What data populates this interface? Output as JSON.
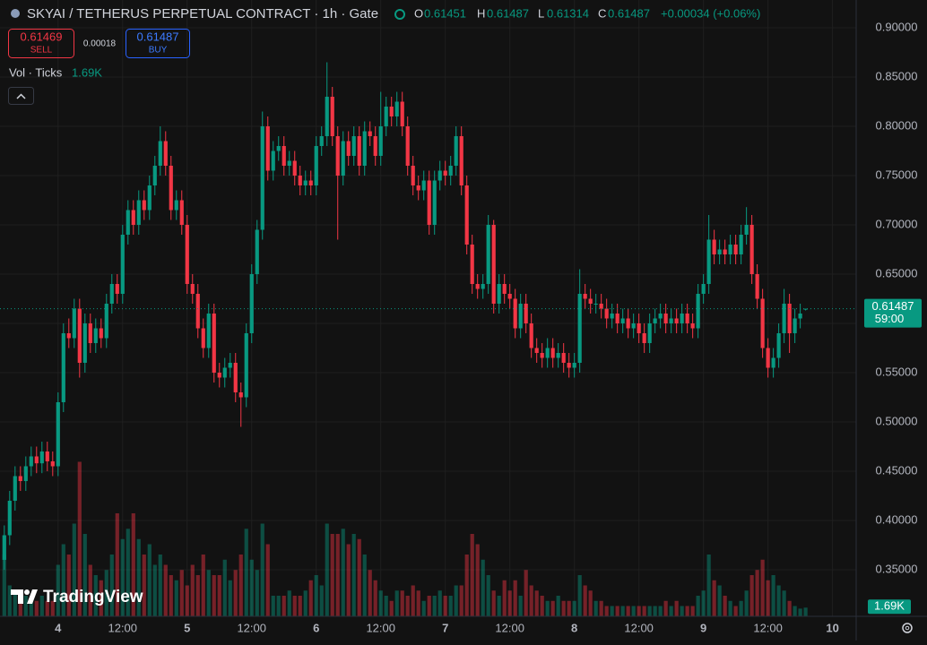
{
  "chart_data": {
    "type": "candlestick",
    "title": "SKYAI / TETHERUS PERPETUAL CONTRACT · 1h · Gate",
    "ohlc_labels": [
      "O",
      "H",
      "L",
      "C"
    ],
    "change": "+0.00034 (+0.06%)",
    "sell": {
      "price": 0.61469,
      "label": "SELL"
    },
    "spread": 0.00018,
    "buy": {
      "price": 0.61487,
      "label": "BUY"
    },
    "volume_title": "Vol · Ticks",
    "volume_label": "1.69K",
    "countdown": "59:00",
    "brand": "TradingView",
    "up_color": "#089981",
    "down_color": "#f23645",
    "grid": true,
    "xlim": [
      -0.8,
      158.4
    ],
    "xticks": [
      {
        "value": 10,
        "label": "4"
      },
      {
        "value": 22,
        "label": "12:00"
      },
      {
        "value": 34,
        "label": "5"
      },
      {
        "value": 46,
        "label": "12:00"
      },
      {
        "value": 58,
        "label": "6"
      },
      {
        "value": 70,
        "label": "12:00"
      },
      {
        "value": 82,
        "label": "7"
      },
      {
        "value": 94,
        "label": "12:00"
      },
      {
        "value": 106,
        "label": "8"
      },
      {
        "value": 118,
        "label": "12:00"
      },
      {
        "value": 130,
        "label": "9"
      },
      {
        "value": 142,
        "label": "12:00"
      },
      {
        "value": 154,
        "label": "10"
      }
    ],
    "ylim": [
      0.3027,
      0.9282
    ],
    "yticks": [
      {
        "value": 0.35,
        "label": "0.35000"
      },
      {
        "value": 0.4,
        "label": "0.40000"
      },
      {
        "value": 0.45,
        "label": "0.45000"
      },
      {
        "value": 0.5,
        "label": "0.50000"
      },
      {
        "value": 0.55,
        "label": "0.55000"
      },
      {
        "value": 0.6,
        "label": "0.60000"
      },
      {
        "value": 0.65,
        "label": "0.65000"
      },
      {
        "value": 0.7,
        "label": "0.70000"
      },
      {
        "value": 0.75,
        "label": "0.75000"
      },
      {
        "value": 0.8,
        "label": "0.80000"
      },
      {
        "value": 0.85,
        "label": "0.85000"
      },
      {
        "value": 0.9,
        "label": "0.90000"
      }
    ],
    "vlim": [
      0,
      40
    ],
    "ohlc": [
      [
        0.36,
        0.395,
        0.35,
        0.385
      ],
      [
        0.385,
        0.43,
        0.375,
        0.42
      ],
      [
        0.42,
        0.455,
        0.41,
        0.445
      ],
      [
        0.445,
        0.455,
        0.43,
        0.44
      ],
      [
        0.44,
        0.465,
        0.43,
        0.455
      ],
      [
        0.455,
        0.475,
        0.445,
        0.465
      ],
      [
        0.465,
        0.475,
        0.448,
        0.458
      ],
      [
        0.458,
        0.48,
        0.448,
        0.47
      ],
      [
        0.47,
        0.48,
        0.45,
        0.46
      ],
      [
        0.46,
        0.47,
        0.445,
        0.455
      ],
      [
        0.455,
        0.53,
        0.445,
        0.52
      ],
      [
        0.52,
        0.6,
        0.51,
        0.59
      ],
      [
        0.59,
        0.605,
        0.575,
        0.585
      ],
      [
        0.585,
        0.625,
        0.575,
        0.615
      ],
      [
        0.615,
        0.625,
        0.545,
        0.56
      ],
      [
        0.56,
        0.61,
        0.55,
        0.6
      ],
      [
        0.6,
        0.61,
        0.57,
        0.58
      ],
      [
        0.58,
        0.605,
        0.57,
        0.595
      ],
      [
        0.595,
        0.605,
        0.575,
        0.585
      ],
      [
        0.585,
        0.63,
        0.575,
        0.62
      ],
      [
        0.62,
        0.65,
        0.61,
        0.64
      ],
      [
        0.64,
        0.65,
        0.62,
        0.63
      ],
      [
        0.63,
        0.7,
        0.62,
        0.69
      ],
      [
        0.69,
        0.725,
        0.68,
        0.715
      ],
      [
        0.715,
        0.725,
        0.69,
        0.7
      ],
      [
        0.7,
        0.735,
        0.69,
        0.725
      ],
      [
        0.725,
        0.735,
        0.705,
        0.715
      ],
      [
        0.715,
        0.75,
        0.705,
        0.74
      ],
      [
        0.74,
        0.77,
        0.73,
        0.76
      ],
      [
        0.76,
        0.8,
        0.75,
        0.785
      ],
      [
        0.785,
        0.795,
        0.75,
        0.76
      ],
      [
        0.76,
        0.77,
        0.705,
        0.715
      ],
      [
        0.715,
        0.735,
        0.705,
        0.725
      ],
      [
        0.725,
        0.735,
        0.69,
        0.7
      ],
      [
        0.7,
        0.71,
        0.63,
        0.64
      ],
      [
        0.64,
        0.65,
        0.62,
        0.63
      ],
      [
        0.63,
        0.64,
        0.585,
        0.595
      ],
      [
        0.595,
        0.605,
        0.565,
        0.575
      ],
      [
        0.575,
        0.62,
        0.565,
        0.61
      ],
      [
        0.61,
        0.62,
        0.54,
        0.55
      ],
      [
        0.55,
        0.56,
        0.535,
        0.545
      ],
      [
        0.545,
        0.565,
        0.535,
        0.555
      ],
      [
        0.555,
        0.57,
        0.545,
        0.56
      ],
      [
        0.56,
        0.57,
        0.52,
        0.53
      ],
      [
        0.53,
        0.54,
        0.495,
        0.525
      ],
      [
        0.525,
        0.6,
        0.515,
        0.59
      ],
      [
        0.59,
        0.66,
        0.58,
        0.65
      ],
      [
        0.65,
        0.705,
        0.64,
        0.695
      ],
      [
        0.695,
        0.815,
        0.685,
        0.8
      ],
      [
        0.8,
        0.81,
        0.745,
        0.755
      ],
      [
        0.755,
        0.785,
        0.745,
        0.775
      ],
      [
        0.775,
        0.79,
        0.765,
        0.78
      ],
      [
        0.78,
        0.79,
        0.75,
        0.76
      ],
      [
        0.76,
        0.775,
        0.75,
        0.765
      ],
      [
        0.765,
        0.775,
        0.74,
        0.75
      ],
      [
        0.75,
        0.76,
        0.73,
        0.74
      ],
      [
        0.74,
        0.755,
        0.73,
        0.745
      ],
      [
        0.745,
        0.755,
        0.73,
        0.74
      ],
      [
        0.74,
        0.79,
        0.73,
        0.78
      ],
      [
        0.78,
        0.8,
        0.77,
        0.79
      ],
      [
        0.79,
        0.865,
        0.78,
        0.83
      ],
      [
        0.83,
        0.84,
        0.78,
        0.79
      ],
      [
        0.79,
        0.8,
        0.685,
        0.75
      ],
      [
        0.75,
        0.795,
        0.74,
        0.785
      ],
      [
        0.785,
        0.795,
        0.76,
        0.77
      ],
      [
        0.77,
        0.8,
        0.76,
        0.79
      ],
      [
        0.79,
        0.8,
        0.75,
        0.76
      ],
      [
        0.76,
        0.805,
        0.75,
        0.795
      ],
      [
        0.795,
        0.805,
        0.78,
        0.79
      ],
      [
        0.79,
        0.8,
        0.76,
        0.77
      ],
      [
        0.77,
        0.835,
        0.76,
        0.8
      ],
      [
        0.8,
        0.83,
        0.79,
        0.82
      ],
      [
        0.82,
        0.83,
        0.8,
        0.81
      ],
      [
        0.81,
        0.835,
        0.8,
        0.825
      ],
      [
        0.825,
        0.835,
        0.79,
        0.8
      ],
      [
        0.8,
        0.81,
        0.75,
        0.76
      ],
      [
        0.76,
        0.77,
        0.73,
        0.74
      ],
      [
        0.74,
        0.75,
        0.725,
        0.735
      ],
      [
        0.735,
        0.755,
        0.725,
        0.745
      ],
      [
        0.745,
        0.755,
        0.69,
        0.7
      ],
      [
        0.7,
        0.755,
        0.69,
        0.745
      ],
      [
        0.745,
        0.765,
        0.735,
        0.755
      ],
      [
        0.755,
        0.765,
        0.74,
        0.75
      ],
      [
        0.75,
        0.77,
        0.74,
        0.76
      ],
      [
        0.76,
        0.8,
        0.75,
        0.79
      ],
      [
        0.79,
        0.8,
        0.73,
        0.74
      ],
      [
        0.74,
        0.75,
        0.67,
        0.68
      ],
      [
        0.68,
        0.69,
        0.63,
        0.64
      ],
      [
        0.64,
        0.65,
        0.625,
        0.635
      ],
      [
        0.635,
        0.65,
        0.625,
        0.64
      ],
      [
        0.64,
        0.71,
        0.63,
        0.7
      ],
      [
        0.7,
        0.705,
        0.61,
        0.62
      ],
      [
        0.62,
        0.65,
        0.61,
        0.64
      ],
      [
        0.64,
        0.65,
        0.62,
        0.63
      ],
      [
        0.63,
        0.64,
        0.615,
        0.625
      ],
      [
        0.625,
        0.635,
        0.585,
        0.595
      ],
      [
        0.595,
        0.63,
        0.585,
        0.62
      ],
      [
        0.62,
        0.63,
        0.59,
        0.6
      ],
      [
        0.6,
        0.61,
        0.565,
        0.575
      ],
      [
        0.575,
        0.585,
        0.56,
        0.57
      ],
      [
        0.57,
        0.58,
        0.555,
        0.565
      ],
      [
        0.565,
        0.585,
        0.555,
        0.575
      ],
      [
        0.575,
        0.585,
        0.555,
        0.565
      ],
      [
        0.565,
        0.58,
        0.555,
        0.57
      ],
      [
        0.57,
        0.58,
        0.55,
        0.56
      ],
      [
        0.56,
        0.57,
        0.545,
        0.555
      ],
      [
        0.555,
        0.57,
        0.545,
        0.56
      ],
      [
        0.56,
        0.655,
        0.55,
        0.63
      ],
      [
        0.63,
        0.64,
        0.615,
        0.625
      ],
      [
        0.625,
        0.635,
        0.61,
        0.62
      ],
      [
        0.62,
        0.63,
        0.61,
        0.62
      ],
      [
        0.62,
        0.63,
        0.605,
        0.615
      ],
      [
        0.615,
        0.625,
        0.595,
        0.605
      ],
      [
        0.605,
        0.62,
        0.595,
        0.61
      ],
      [
        0.61,
        0.62,
        0.59,
        0.6
      ],
      [
        0.6,
        0.615,
        0.59,
        0.605
      ],
      [
        0.605,
        0.615,
        0.585,
        0.595
      ],
      [
        0.595,
        0.61,
        0.585,
        0.6
      ],
      [
        0.6,
        0.61,
        0.58,
        0.59
      ],
      [
        0.59,
        0.6,
        0.57,
        0.58
      ],
      [
        0.58,
        0.61,
        0.57,
        0.6
      ],
      [
        0.6,
        0.615,
        0.59,
        0.605
      ],
      [
        0.605,
        0.62,
        0.595,
        0.61
      ],
      [
        0.61,
        0.62,
        0.59,
        0.6
      ],
      [
        0.6,
        0.615,
        0.59,
        0.605
      ],
      [
        0.605,
        0.615,
        0.59,
        0.6
      ],
      [
        0.6,
        0.62,
        0.59,
        0.61
      ],
      [
        0.61,
        0.62,
        0.59,
        0.6
      ],
      [
        0.6,
        0.61,
        0.585,
        0.595
      ],
      [
        0.595,
        0.64,
        0.585,
        0.63
      ],
      [
        0.63,
        0.65,
        0.62,
        0.64
      ],
      [
        0.64,
        0.71,
        0.63,
        0.685
      ],
      [
        0.685,
        0.695,
        0.66,
        0.67
      ],
      [
        0.67,
        0.685,
        0.66,
        0.675
      ],
      [
        0.675,
        0.685,
        0.66,
        0.67
      ],
      [
        0.67,
        0.69,
        0.66,
        0.68
      ],
      [
        0.68,
        0.69,
        0.66,
        0.67
      ],
      [
        0.67,
        0.7,
        0.66,
        0.69
      ],
      [
        0.69,
        0.718,
        0.68,
        0.7
      ],
      [
        0.7,
        0.71,
        0.64,
        0.65
      ],
      [
        0.65,
        0.66,
        0.615,
        0.625
      ],
      [
        0.625,
        0.635,
        0.565,
        0.575
      ],
      [
        0.575,
        0.585,
        0.545,
        0.555
      ],
      [
        0.555,
        0.575,
        0.545,
        0.565
      ],
      [
        0.565,
        0.6,
        0.555,
        0.59
      ],
      [
        0.59,
        0.635,
        0.58,
        0.62
      ],
      [
        0.62,
        0.63,
        0.57,
        0.59
      ],
      [
        0.59,
        0.615,
        0.58,
        0.605
      ],
      [
        0.605,
        0.62,
        0.595,
        0.61
      ],
      [
        0.61451,
        0.61487,
        0.61314,
        0.61487
      ]
    ],
    "volume": [
      12,
      6,
      5,
      4,
      4,
      3,
      3,
      4,
      3,
      3,
      10,
      14,
      12,
      18,
      30,
      16,
      10,
      8,
      7,
      9,
      12,
      20,
      15,
      17,
      20,
      15,
      12,
      14,
      10,
      12,
      10,
      8,
      7,
      9,
      6,
      10,
      8,
      12,
      9,
      8,
      8,
      11,
      7,
      9,
      12,
      17,
      11,
      9,
      18,
      14,
      4,
      4,
      4,
      5,
      4,
      4,
      5,
      7,
      8,
      6,
      18,
      16,
      16,
      17,
      14,
      16,
      15,
      12,
      9,
      7,
      5,
      4,
      3,
      5,
      5,
      4,
      6,
      5,
      3,
      4,
      4,
      5,
      4,
      4,
      6,
      6,
      12,
      16,
      14,
      11,
      8,
      5,
      4,
      7,
      5,
      7,
      4,
      9,
      6,
      5,
      4,
      3,
      3,
      4,
      3,
      3,
      3,
      8,
      6,
      5,
      3,
      3,
      2,
      2,
      2,
      2,
      2,
      2,
      2,
      2,
      2,
      2,
      2,
      3,
      2,
      3,
      2,
      2,
      2,
      4,
      5,
      12,
      7,
      6,
      4,
      3,
      2,
      3,
      5,
      8,
      9,
      11,
      7,
      8,
      6,
      5,
      3,
      2,
      1.5,
      1.69
    ]
  }
}
